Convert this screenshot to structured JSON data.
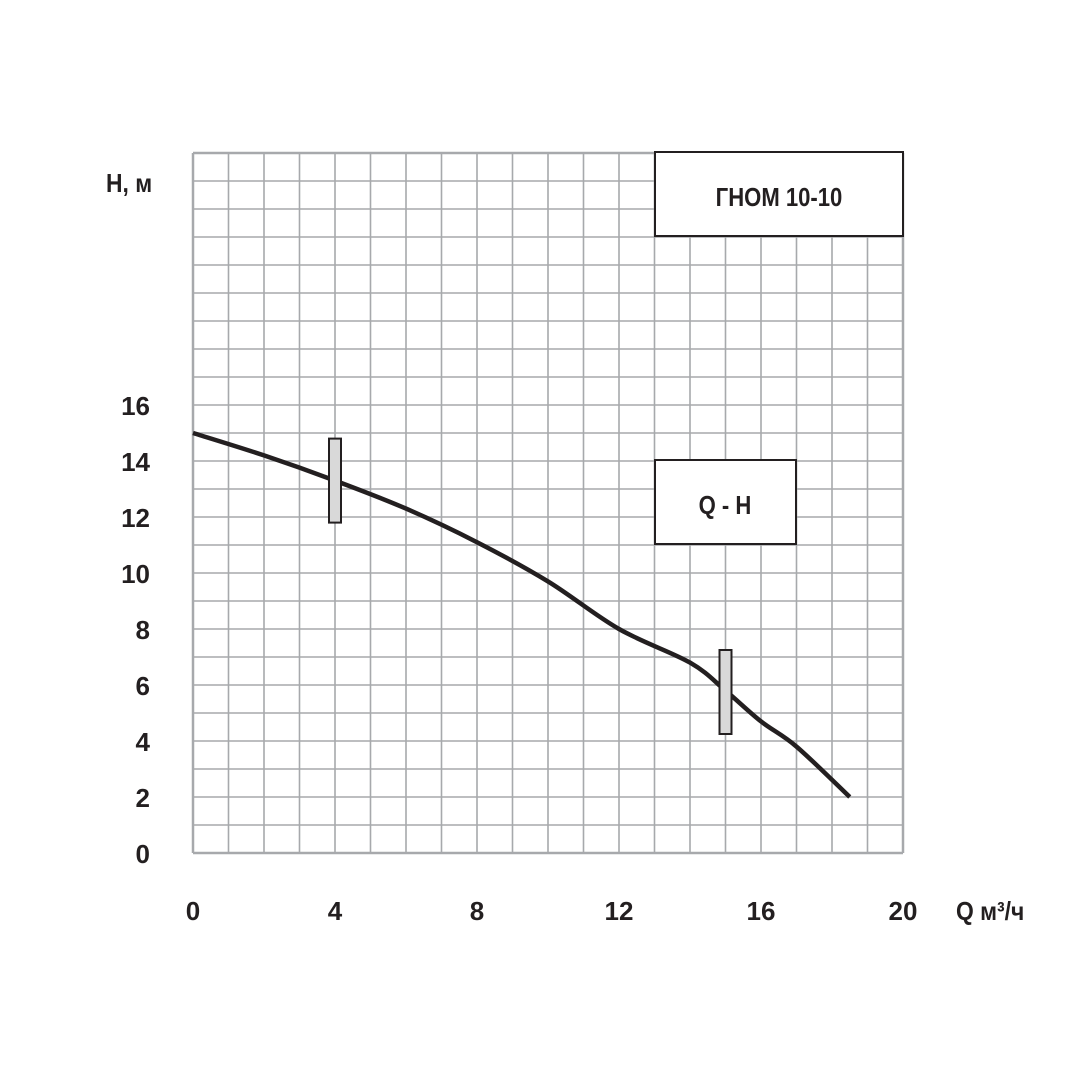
{
  "chart_data": {
    "type": "line",
    "title": "ГНОМ 10-10",
    "legend": "Q - H",
    "xlabel": "Q м³/ч",
    "ylabel": "H, м",
    "xlim": [
      0,
      20
    ],
    "ylim": [
      0,
      25
    ],
    "x_ticks": [
      0,
      4,
      8,
      12,
      16,
      20
    ],
    "y_ticks": [
      0,
      2,
      4,
      6,
      8,
      10,
      12,
      14,
      16
    ],
    "grid": true,
    "grid_step_x": 1,
    "grid_step_y": 1,
    "series": [
      {
        "name": "Q - H",
        "x": [
          0,
          2,
          4,
          6,
          8,
          10,
          12,
          14,
          15,
          16,
          17,
          18.5
        ],
        "y": [
          15.0,
          14.2,
          13.3,
          12.3,
          11.1,
          9.7,
          8.0,
          6.8,
          5.8,
          4.7,
          3.8,
          2.0
        ]
      }
    ],
    "operating_range_markers": [
      {
        "x": 4,
        "y_min": 11.8,
        "y_max": 14.8
      },
      {
        "x": 15,
        "y_min": 4.25,
        "y_max": 7.25
      }
    ],
    "colors": {
      "curve": "#231f20",
      "grid": "#a7a9ac",
      "marker_fill": "#d9d9d9"
    }
  }
}
